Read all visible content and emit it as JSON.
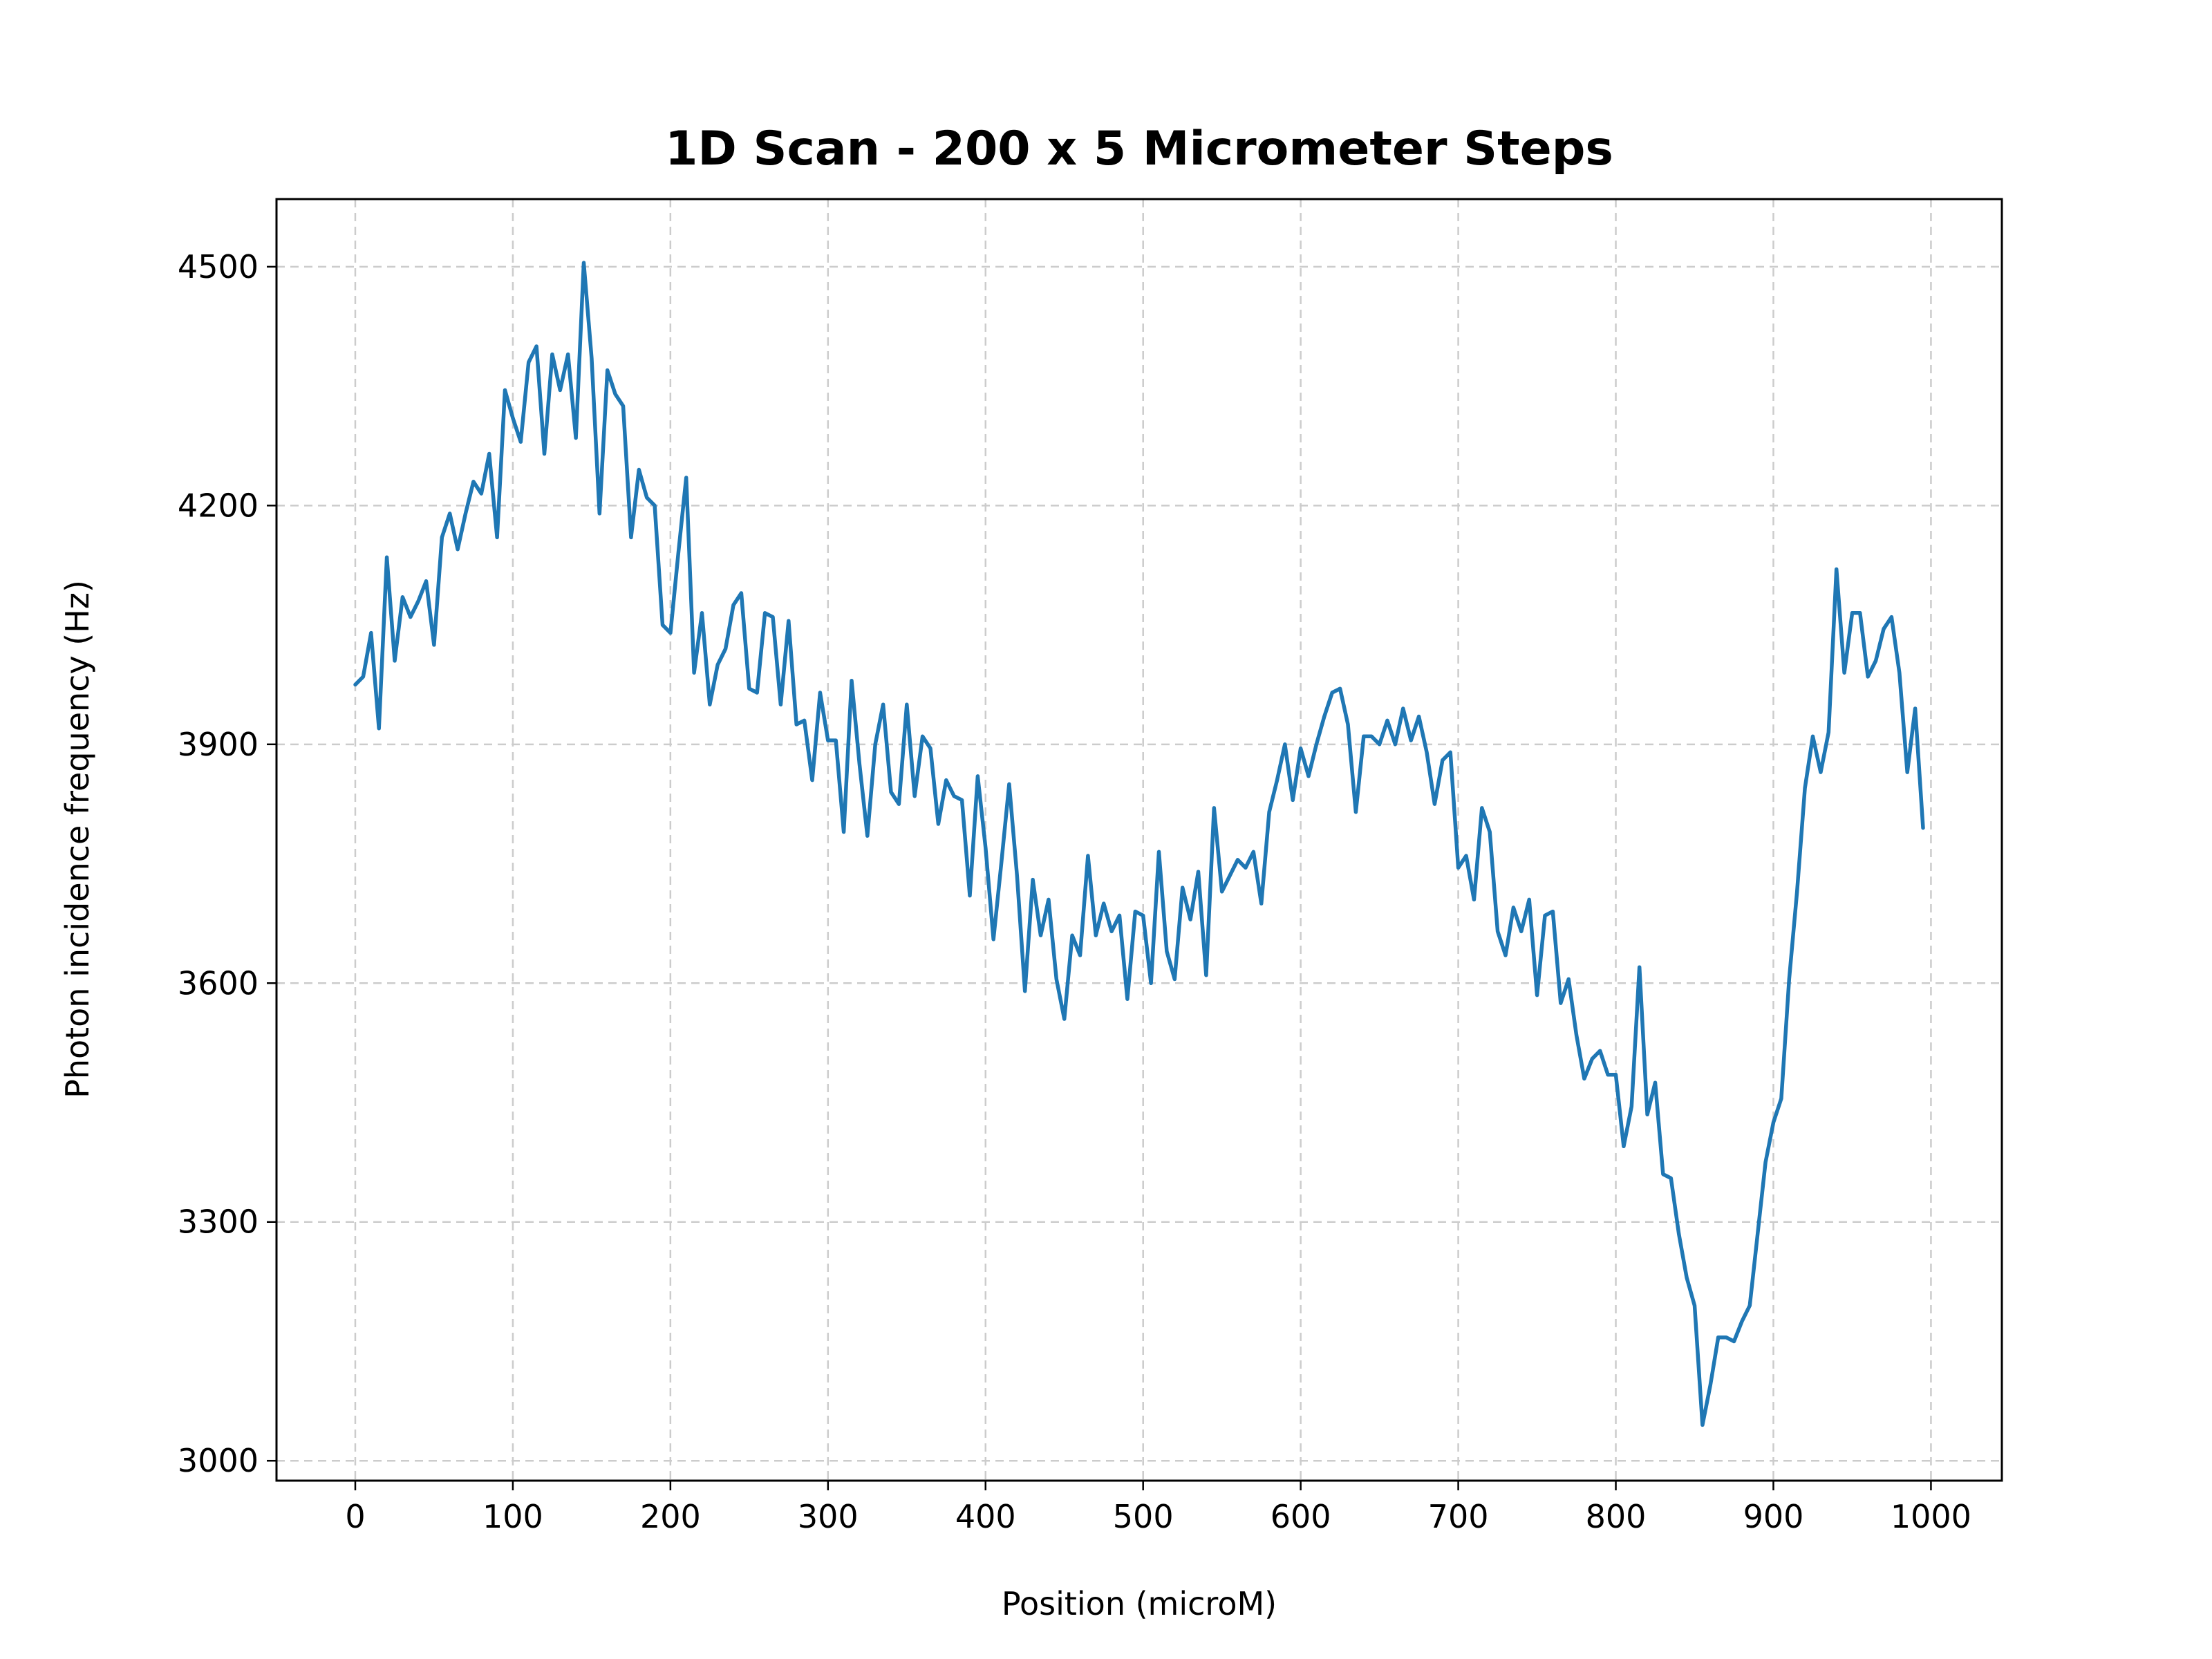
{
  "chart_data": {
    "type": "line",
    "title": "1D Scan - 200 x 5 Micrometer Steps",
    "xlabel": "Position (microM)",
    "ylabel": "Photon incidence frequency (Hz)",
    "xlim": [
      -50,
      1045
    ],
    "ylim": [
      2975,
      4585
    ],
    "xticks": [
      0,
      100,
      200,
      300,
      400,
      500,
      600,
      700,
      800,
      900,
      1000
    ],
    "yticks": [
      3000,
      3300,
      3600,
      3900,
      4200,
      4500
    ],
    "xtick_labels": [
      "0",
      "100",
      "200",
      "300",
      "400",
      "500",
      "600",
      "700",
      "800",
      "900",
      "1000"
    ],
    "ytick_labels": [
      "3000",
      "3300",
      "3600",
      "3900",
      "4200",
      "4500"
    ],
    "grid": true,
    "colors": {
      "line": "#1f77b4"
    },
    "series": [
      {
        "x": [
          0,
          5,
          10,
          15,
          20,
          25,
          30,
          35,
          40,
          45,
          50,
          55,
          60,
          65,
          70,
          75,
          80,
          85,
          90,
          95,
          100,
          105,
          110,
          115,
          120,
          125,
          130,
          135,
          140,
          145,
          150,
          155,
          160,
          165,
          170,
          175,
          180,
          185,
          190,
          195,
          200,
          205,
          210,
          215,
          220,
          225,
          230,
          235,
          240,
          245,
          250,
          255,
          260,
          265,
          270,
          275,
          280,
          285,
          290,
          295,
          300,
          305,
          310,
          315,
          320,
          325,
          330,
          335,
          340,
          345,
          350,
          355,
          360,
          365,
          370,
          375,
          380,
          385,
          390,
          395,
          400,
          405,
          410,
          415,
          420,
          425,
          430,
          435,
          440,
          445,
          450,
          455,
          460,
          465,
          470,
          475,
          480,
          485,
          490,
          495,
          500,
          505,
          510,
          515,
          520,
          525,
          530,
          535,
          540,
          545,
          550,
          555,
          560,
          565,
          570,
          575,
          580,
          585,
          590,
          595,
          600,
          605,
          610,
          615,
          620,
          625,
          630,
          635,
          640,
          645,
          650,
          655,
          660,
          665,
          670,
          675,
          680,
          685,
          690,
          695,
          700,
          705,
          710,
          715,
          720,
          725,
          730,
          735,
          740,
          745,
          750,
          755,
          760,
          765,
          770,
          775,
          780,
          785,
          790,
          795,
          800,
          805,
          810,
          815,
          820,
          825,
          830,
          835,
          840,
          845,
          850,
          855,
          860,
          865,
          870,
          875,
          880,
          885,
          890,
          895,
          900,
          905,
          910,
          915,
          920,
          925,
          930,
          935,
          940,
          945,
          950,
          955,
          960,
          965,
          970,
          975,
          980,
          985,
          990,
          995
        ],
        "y": [
          3975,
          3985,
          4040,
          3920,
          4135,
          4005,
          4085,
          4060,
          4080,
          4105,
          4025,
          4160,
          4190,
          4145,
          4190,
          4230,
          4215,
          4265,
          4160,
          4345,
          4310,
          4280,
          4380,
          4400,
          4265,
          4390,
          4345,
          4390,
          4285,
          4505,
          4385,
          4190,
          4370,
          4340,
          4325,
          4160,
          4245,
          4210,
          4200,
          4050,
          4040,
          4140,
          4235,
          3990,
          4065,
          3950,
          4000,
          4020,
          4075,
          4090,
          3970,
          3965,
          4065,
          4060,
          3950,
          4055,
          3925,
          3930,
          3855,
          3965,
          3905,
          3905,
          3790,
          3980,
          3875,
          3785,
          3900,
          3950,
          3840,
          3825,
          3950,
          3835,
          3910,
          3895,
          3800,
          3855,
          3835,
          3830,
          3710,
          3860,
          3770,
          3655,
          3750,
          3850,
          3735,
          3590,
          3730,
          3660,
          3705,
          3605,
          3555,
          3660,
          3635,
          3760,
          3660,
          3700,
          3665,
          3685,
          3580,
          3690,
          3685,
          3600,
          3765,
          3640,
          3605,
          3720,
          3680,
          3740,
          3610,
          3820,
          3715,
          3735,
          3755,
          3745,
          3765,
          3700,
          3815,
          3855,
          3900,
          3830,
          3895,
          3860,
          3900,
          3935,
          3965,
          3970,
          3925,
          3815,
          3910,
          3910,
          3900,
          3930,
          3900,
          3945,
          3905,
          3935,
          3890,
          3825,
          3880,
          3890,
          3745,
          3760,
          3705,
          3820,
          3790,
          3665,
          3635,
          3695,
          3665,
          3705,
          3585,
          3685,
          3690,
          3575,
          3605,
          3535,
          3480,
          3505,
          3515,
          3485,
          3485,
          3395,
          3445,
          3620,
          3435,
          3475,
          3360,
          3355,
          3285,
          3230,
          3195,
          3045,
          3095,
          3155,
          3155,
          3150,
          3175,
          3195,
          3285,
          3375,
          3425,
          3455,
          3605,
          3715,
          3845,
          3910,
          3865,
          3915,
          4120,
          3990,
          4065,
          4065,
          3985,
          4005,
          4045,
          4060,
          3990,
          3865,
          3945,
          3795
        ]
      }
    ]
  }
}
